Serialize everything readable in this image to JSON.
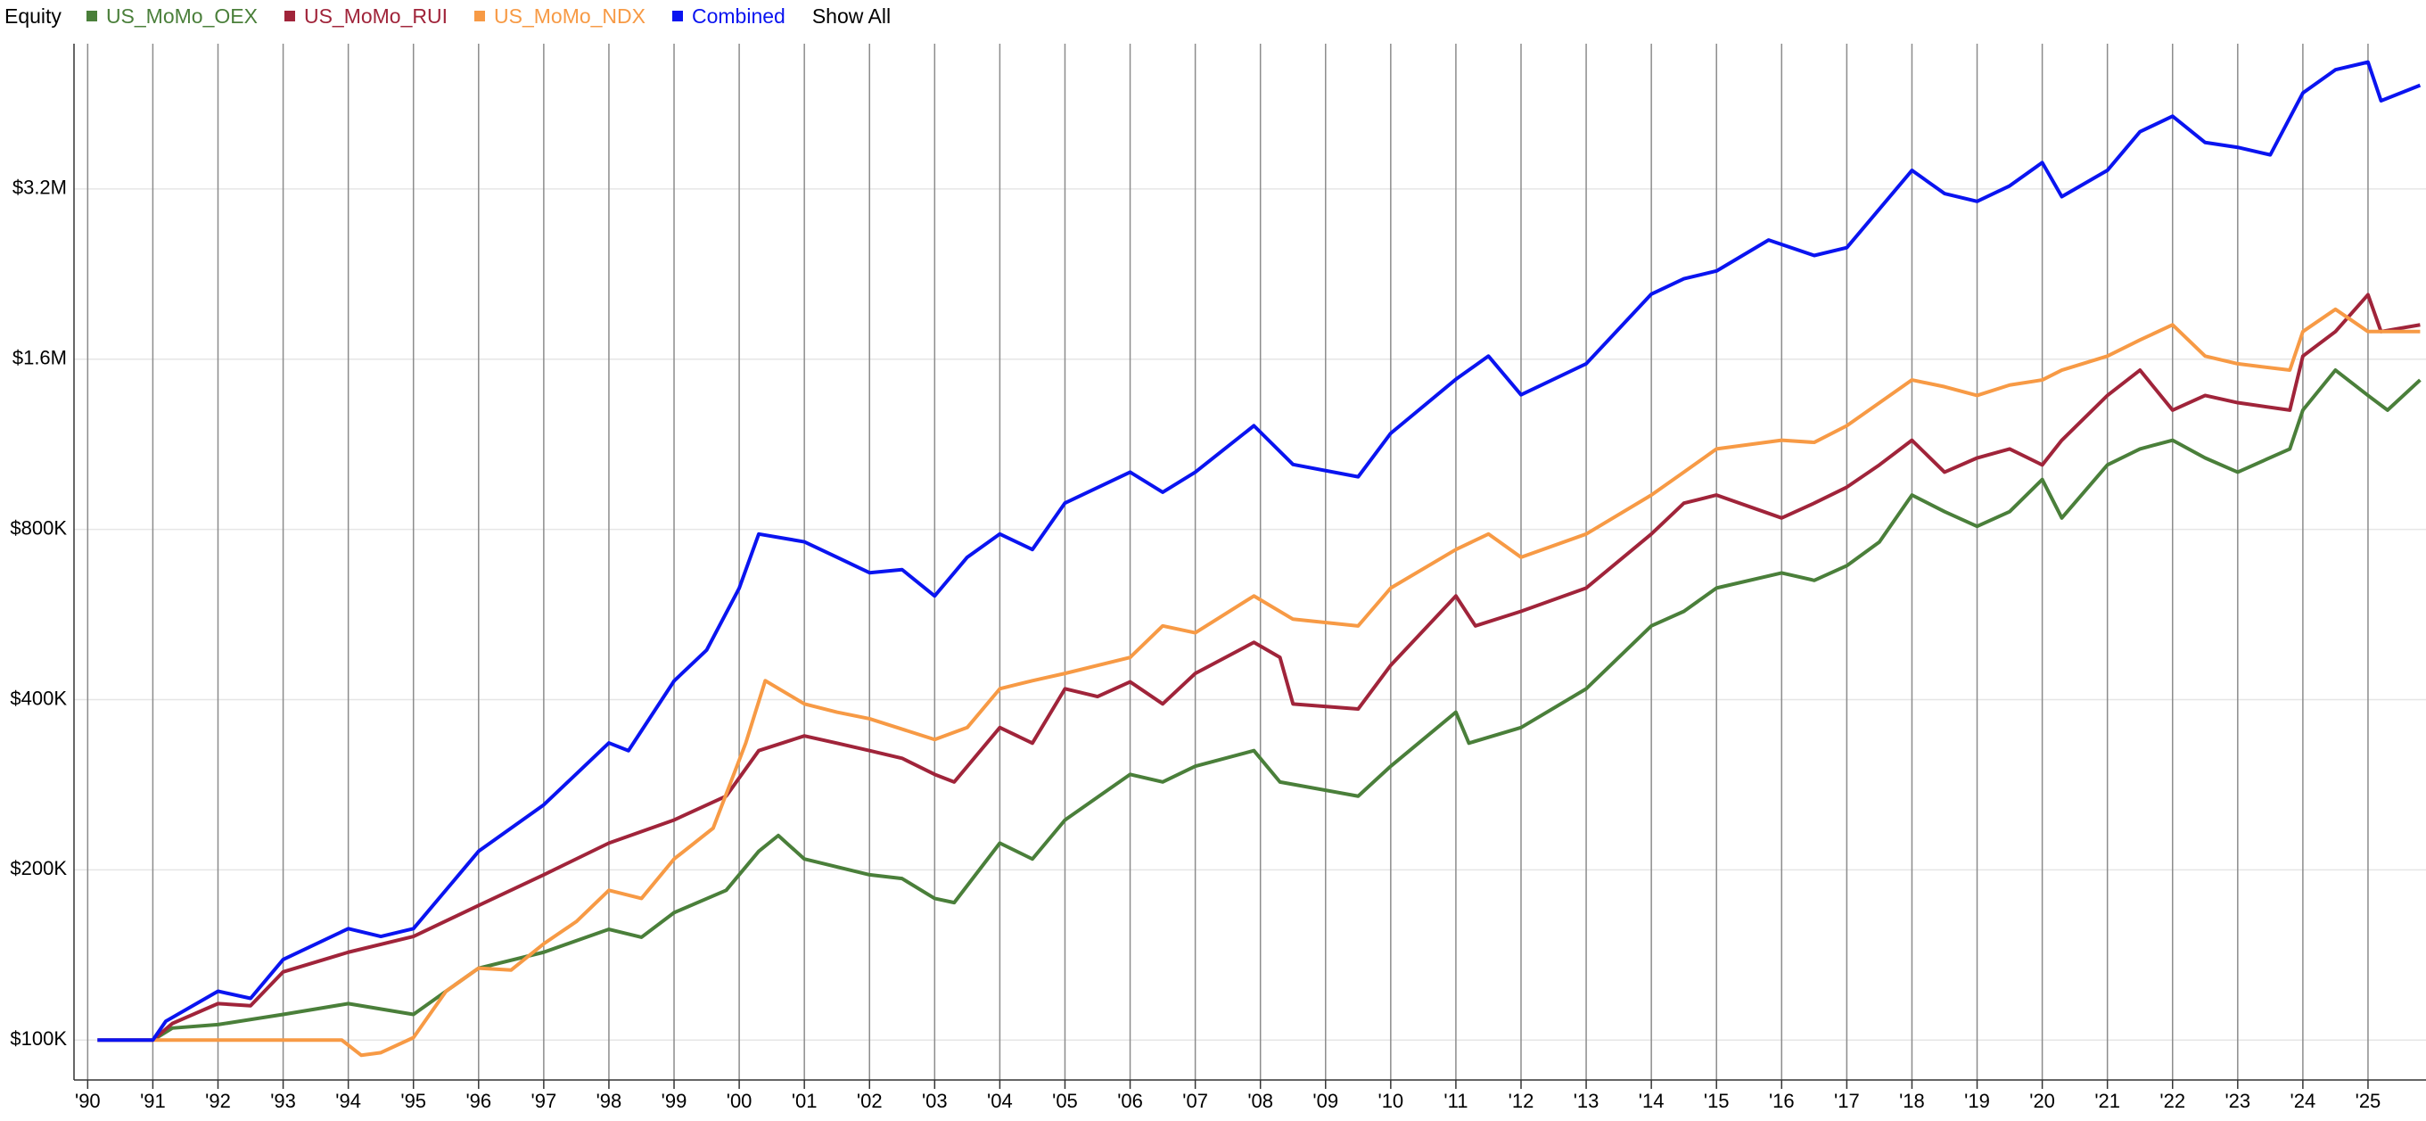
{
  "chart_data": {
    "type": "line",
    "y_label": "Equity",
    "show_all_label": "Show All",
    "log_scale": true,
    "grid": true,
    "xlim": [
      1989.79,
      2025.89
    ],
    "ylim": [
      85000,
      5780000
    ],
    "yticks": [
      {
        "value": 100000,
        "label": "$100K"
      },
      {
        "value": 200000,
        "label": "$200K"
      },
      {
        "value": 400000,
        "label": "$400K"
      },
      {
        "value": 800000,
        "label": "$800K"
      },
      {
        "value": 1600000,
        "label": "$1.6M"
      },
      {
        "value": 3200000,
        "label": "$3.2M"
      }
    ],
    "xticks": [
      {
        "value": 1990,
        "label": "'90"
      },
      {
        "value": 1991,
        "label": "'91"
      },
      {
        "value": 1992,
        "label": "'92"
      },
      {
        "value": 1993,
        "label": "'93"
      },
      {
        "value": 1994,
        "label": "'94"
      },
      {
        "value": 1995,
        "label": "'95"
      },
      {
        "value": 1996,
        "label": "'96"
      },
      {
        "value": 1997,
        "label": "'97"
      },
      {
        "value": 1998,
        "label": "'98"
      },
      {
        "value": 1999,
        "label": "'99"
      },
      {
        "value": 2000,
        "label": "'00"
      },
      {
        "value": 2001,
        "label": "'01"
      },
      {
        "value": 2002,
        "label": "'02"
      },
      {
        "value": 2003,
        "label": "'03"
      },
      {
        "value": 2004,
        "label": "'04"
      },
      {
        "value": 2005,
        "label": "'05"
      },
      {
        "value": 2006,
        "label": "'06"
      },
      {
        "value": 2007,
        "label": "'07"
      },
      {
        "value": 2008,
        "label": "'08"
      },
      {
        "value": 2009,
        "label": "'09"
      },
      {
        "value": 2010,
        "label": "'10"
      },
      {
        "value": 2011,
        "label": "'11"
      },
      {
        "value": 2012,
        "label": "'12"
      },
      {
        "value": 2013,
        "label": "'13"
      },
      {
        "value": 2014,
        "label": "'14"
      },
      {
        "value": 2015,
        "label": "'15"
      },
      {
        "value": 2016,
        "label": "'16"
      },
      {
        "value": 2017,
        "label": "'17"
      },
      {
        "value": 2018,
        "label": "'18"
      },
      {
        "value": 2019,
        "label": "'19"
      },
      {
        "value": 2020,
        "label": "'20"
      },
      {
        "value": 2021,
        "label": "'21"
      },
      {
        "value": 2022,
        "label": "'22"
      },
      {
        "value": 2023,
        "label": "'23"
      },
      {
        "value": 2024,
        "label": "'24"
      },
      {
        "value": 2025,
        "label": "'25"
      }
    ],
    "series": [
      {
        "name": "US_MoMo_OEX",
        "color": "#4a7f3a",
        "x": [
          1991,
          1991.3,
          1992,
          1993,
          1994,
          1995,
          1995.5,
          1996,
          1997,
          1998,
          1998.5,
          1999,
          1999.8,
          2000.3,
          2000.6,
          2001,
          2002,
          2002.5,
          2003,
          2003.3,
          2004,
          2004.5,
          2005,
          2006,
          2006.5,
          2007,
          2007.9,
          2008.3,
          2009.5,
          2010,
          2011,
          2011.2,
          2012,
          2013,
          2014,
          2014.5,
          2015,
          2016,
          2016.5,
          2017,
          2017.5,
          2018,
          2018.5,
          2019,
          2019.5,
          2020,
          2020.3,
          2021,
          2021.5,
          2022,
          2022.5,
          2023,
          2023.8,
          2024,
          2024.5,
          2025,
          2025.3,
          2025.8
        ],
        "values": [
          100000,
          105000,
          106500,
          111000,
          116000,
          111000,
          122000,
          134000,
          143000,
          157000,
          152000,
          168000,
          184000,
          215700,
          230000,
          209000,
          196000,
          193000,
          178000,
          175000,
          223000,
          209000,
          245000,
          295000,
          286000,
          305000,
          325000,
          286000,
          270000,
          305000,
          380000,
          335000,
          357000,
          418000,
          540000,
          573000,
          630000,
          670000,
          650000,
          690000,
          760000,
          920000,
          860000,
          810000,
          860000,
          980000,
          838000,
          1040000,
          1110000,
          1150000,
          1070000,
          1010000,
          1110000,
          1300000,
          1530000,
          1380000,
          1300000,
          1470000
        ]
      },
      {
        "name": "US_MoMo_RUI",
        "color": "#a0243a",
        "x": [
          1990.15,
          1991,
          1991.3,
          1992,
          1992.5,
          1993,
          1994,
          1995,
          1996,
          1997,
          1998,
          1999,
          1999.8,
          2000.3,
          2001,
          2001.5,
          2002,
          2002.5,
          2003,
          2003.3,
          2004,
          2004.5,
          2005,
          2005.5,
          2006,
          2006.5,
          2007,
          2007.9,
          2008.3,
          2008.5,
          2009.5,
          2010,
          2011,
          2011.3,
          2012,
          2013,
          2014,
          2014.5,
          2015,
          2016,
          2016.5,
          2017,
          2017.5,
          2018,
          2018.5,
          2019,
          2019.5,
          2020,
          2020.3,
          2021,
          2021.5,
          2022,
          2022.5,
          2023,
          2023.8,
          2024,
          2024.5,
          2025,
          2025.2,
          2025.8
        ],
        "values": [
          100000,
          100000,
          107000,
          116000,
          115000,
          132000,
          143000,
          152500,
          173000,
          196000,
          223000,
          245000,
          270000,
          325000,
          345000,
          335000,
          325000,
          315000,
          295000,
          286000,
          357000,
          335000,
          418000,
          405000,
          430000,
          393000,
          445000,
          505000,
          475000,
          393000,
          385000,
          460000,
          610000,
          540000,
          573000,
          630000,
          785000,
          890000,
          920000,
          838000,
          890000,
          950000,
          1040000,
          1150000,
          1010000,
          1070000,
          1110000,
          1040000,
          1150000,
          1380000,
          1530000,
          1300000,
          1380000,
          1340000,
          1300000,
          1620000,
          1790000,
          2080000,
          1790000,
          1840000
        ]
      },
      {
        "name": "US_MoMo_NDX",
        "color": "#f79a45",
        "x": [
          1991,
          1993.9,
          1994.2,
          1994.5,
          1995,
          1995.5,
          1996,
          1996.5,
          1997,
          1997.5,
          1998,
          1998.5,
          1999,
          1999.6,
          2000.1,
          2000.4,
          2001,
          2001.5,
          2002,
          2003,
          2003.5,
          2004,
          2004.5,
          2005,
          2006,
          2006.5,
          2007,
          2007.9,
          2008.5,
          2009.5,
          2010,
          2011,
          2011.5,
          2012,
          2013,
          2014,
          2014.5,
          2015,
          2016,
          2016.5,
          2017,
          2018,
          2018.5,
          2019,
          2019.5,
          2020,
          2020.3,
          2021,
          2021.5,
          2022,
          2022.5,
          2023,
          2023.8,
          2024,
          2024.5,
          2025,
          2025.8
        ],
        "values": [
          100000,
          100000,
          94000,
          95000,
          101000,
          122000,
          134000,
          133000,
          148000,
          162000,
          184000,
          178000,
          209000,
          237000,
          335000,
          432000,
          393000,
          380000,
          370000,
          340000,
          357000,
          418000,
          432000,
          445000,
          475000,
          540000,
          525000,
          610000,
          555000,
          540000,
          630000,
          737000,
          785000,
          714000,
          785000,
          920000,
          1010000,
          1110000,
          1150000,
          1140000,
          1220000,
          1470000,
          1430000,
          1380000,
          1440000,
          1470000,
          1530000,
          1620000,
          1730000,
          1840000,
          1620000,
          1570000,
          1530000,
          1790000,
          1960000,
          1790000,
          1790000
        ]
      },
      {
        "name": "Combined",
        "color": "#0a14f0",
        "x": [
          1990.15,
          1991,
          1991.2,
          1992,
          1992.5,
          1993,
          1994,
          1994.5,
          1995,
          1996,
          1997,
          1998,
          1998.3,
          1999,
          1999.5,
          2000,
          2000.3,
          2001,
          2001.5,
          2002,
          2002.5,
          2003,
          2003.5,
          2004,
          2004.5,
          2005,
          2006,
          2006.5,
          2007,
          2007.9,
          2008.5,
          2009.5,
          2010,
          2011,
          2011.5,
          2012,
          2013,
          2014,
          2014.5,
          2015,
          2015.8,
          2016.5,
          2017,
          2018,
          2018.5,
          2019,
          2019.5,
          2020,
          2020.3,
          2021,
          2021.5,
          2022,
          2022.5,
          2023,
          2023.5,
          2024,
          2024.5,
          2025,
          2025.2,
          2025.8
        ],
        "values": [
          100000,
          100000,
          108000,
          122000,
          118500,
          138800,
          157400,
          152500,
          157400,
          215700,
          260600,
          335300,
          324900,
          431500,
          489400,
          629700,
          785000,
          760500,
          714200,
          670500,
          679000,
          610000,
          714200,
          785000,
          737000,
          890700,
          1010000,
          930700,
          1010000,
          1220000,
          1042000,
          991000,
          1183000,
          1474000,
          1620000,
          1384000,
          1570000,
          2085000,
          2220000,
          2291000,
          2599000,
          2440000,
          2519000,
          3451000,
          3140000,
          3042000,
          3240000,
          3562000,
          3101000,
          3451000,
          4039000,
          4302000,
          3866000,
          3790000,
          3676000,
          4729000,
          5198000,
          5363000,
          4582000,
          4879000
        ]
      }
    ]
  }
}
